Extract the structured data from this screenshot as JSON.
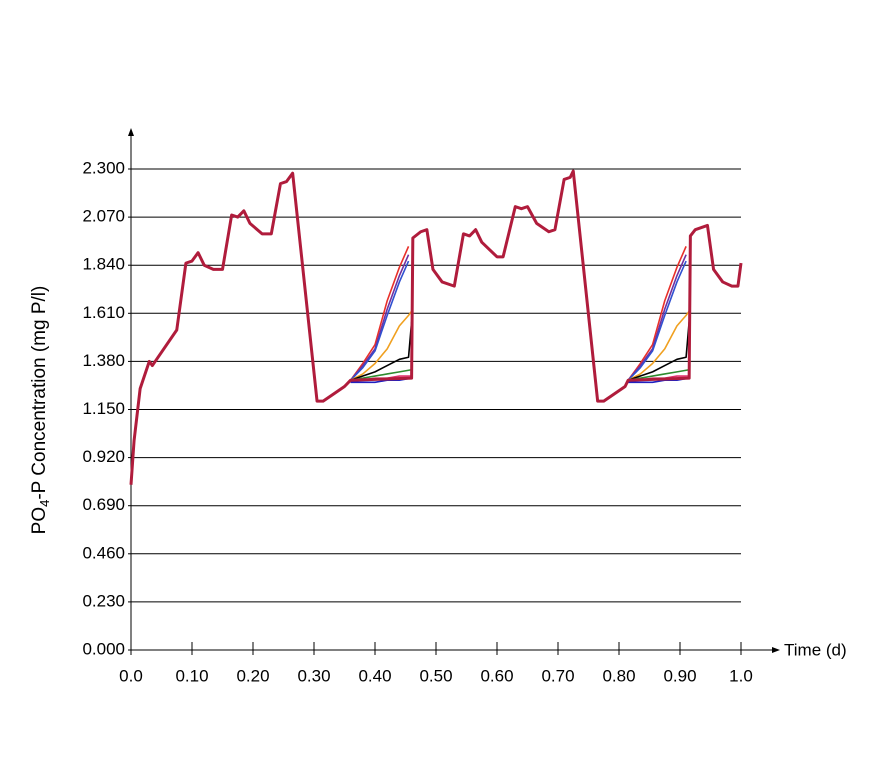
{
  "chart_data": {
    "type": "line",
    "x_label": "Time (d)",
    "y_label": [
      "PO",
      "4",
      "-P Concentration (mg P/l)"
    ],
    "xlim": [
      0,
      1
    ],
    "ylim": [
      0,
      2.3
    ],
    "xticks": [
      {
        "value": 0,
        "label": "0.0"
      },
      {
        "value": 0.1,
        "label": "0.10"
      },
      {
        "value": 0.2,
        "label": "0.20"
      },
      {
        "value": 0.3,
        "label": "0.30"
      },
      {
        "value": 0.4,
        "label": "0.40"
      },
      {
        "value": 0.5,
        "label": "0.50"
      },
      {
        "value": 0.6,
        "label": "0.60"
      },
      {
        "value": 0.7,
        "label": "0.70"
      },
      {
        "value": 0.8,
        "label": "0.80"
      },
      {
        "value": 0.9,
        "label": "0.90"
      },
      {
        "value": 1,
        "label": "1.0"
      }
    ],
    "yticks": [
      {
        "value": 0,
        "label": "0.000"
      },
      {
        "value": 0.23,
        "label": "0.230"
      },
      {
        "value": 0.46,
        "label": "0.460"
      },
      {
        "value": 0.69,
        "label": "0.690"
      },
      {
        "value": 0.92,
        "label": "0.920"
      },
      {
        "value": 1.15,
        "label": "1.150"
      },
      {
        "value": 1.38,
        "label": "1.380"
      },
      {
        "value": 1.61,
        "label": "1.610"
      },
      {
        "value": 1.84,
        "label": "1.840"
      },
      {
        "value": 2.07,
        "label": "2.070"
      },
      {
        "value": 2.3,
        "label": "2.300"
      }
    ],
    "grid": true,
    "series": [
      {
        "color": "#e8302a",
        "x": [
          0.36,
          0.38,
          0.4,
          0.42,
          0.44,
          0.455,
          0.6,
          0.815,
          0.835,
          0.855,
          0.875,
          0.895,
          0.91
        ],
        "values": [
          1.29,
          1.37,
          1.46,
          1.67,
          1.83,
          1.93,
          null,
          1.29,
          1.37,
          1.46,
          1.67,
          1.83,
          1.93
        ]
      },
      {
        "color": "#7030a0",
        "x": [
          0.36,
          0.38,
          0.4,
          0.42,
          0.44,
          0.455,
          0.6,
          0.815,
          0.835,
          0.855,
          0.875,
          0.895,
          0.91
        ],
        "values": [
          1.29,
          1.36,
          1.44,
          1.63,
          1.79,
          1.89,
          null,
          1.29,
          1.36,
          1.44,
          1.63,
          1.79,
          1.89
        ]
      },
      {
        "color": "#3050d0",
        "x": [
          0.36,
          0.38,
          0.4,
          0.42,
          0.44,
          0.455,
          0.6,
          0.815,
          0.835,
          0.855,
          0.875,
          0.895,
          0.91
        ],
        "values": [
          1.29,
          1.35,
          1.43,
          1.6,
          1.76,
          1.86,
          null,
          1.29,
          1.35,
          1.43,
          1.6,
          1.76,
          1.86
        ]
      },
      {
        "color": "#f0a020",
        "x": [
          0.36,
          0.38,
          0.4,
          0.42,
          0.44,
          0.455,
          0.46,
          0.6,
          0.815,
          0.835,
          0.855,
          0.875,
          0.895,
          0.91,
          0.915
        ],
        "values": [
          1.29,
          1.32,
          1.37,
          1.44,
          1.55,
          1.6,
          1.62,
          null,
          1.29,
          1.32,
          1.37,
          1.44,
          1.55,
          1.6,
          1.62
        ]
      },
      {
        "color": "#000000",
        "x": [
          0.36,
          0.38,
          0.4,
          0.42,
          0.44,
          0.455,
          0.46,
          0.6,
          0.815,
          0.835,
          0.855,
          0.875,
          0.895,
          0.91,
          0.915
        ],
        "values": [
          1.29,
          1.31,
          1.33,
          1.36,
          1.39,
          1.4,
          1.57,
          null,
          1.29,
          1.31,
          1.33,
          1.36,
          1.39,
          1.4,
          1.57
        ]
      },
      {
        "color": "#2e8b2e",
        "x": [
          0.36,
          0.38,
          0.4,
          0.42,
          0.44,
          0.46,
          0.6,
          0.815,
          0.835,
          0.855,
          0.875,
          0.895,
          0.915
        ],
        "values": [
          1.29,
          1.3,
          1.31,
          1.32,
          1.33,
          1.34,
          null,
          1.29,
          1.3,
          1.31,
          1.32,
          1.33,
          1.34
        ]
      },
      {
        "color": "#e0306a",
        "x": [
          0.36,
          0.38,
          0.4,
          0.42,
          0.44,
          0.46,
          0.6,
          0.815,
          0.835,
          0.855,
          0.875,
          0.895,
          0.915
        ],
        "values": [
          1.29,
          1.29,
          1.3,
          1.3,
          1.31,
          1.31,
          null,
          1.29,
          1.29,
          1.3,
          1.3,
          1.31,
          1.31
        ]
      },
      {
        "color": "#2020c0",
        "x": [
          0.36,
          0.38,
          0.4,
          0.42,
          0.44,
          0.46,
          0.6,
          0.815,
          0.835,
          0.855,
          0.875,
          0.895,
          0.915
        ],
        "values": [
          1.28,
          1.28,
          1.28,
          1.29,
          1.29,
          1.3,
          null,
          1.28,
          1.28,
          1.28,
          1.29,
          1.29,
          1.3
        ]
      },
      {
        "color": "#b01c3c",
        "x": [
          0,
          0.005,
          0.015,
          0.03,
          0.035,
          0.075,
          0.09,
          0.1,
          0.11,
          0.12,
          0.135,
          0.15,
          0.165,
          0.175,
          0.185,
          0.195,
          0.215,
          0.23,
          0.245,
          0.255,
          0.265,
          0.305,
          0.315,
          0.33,
          0.35,
          0.36,
          0.46,
          0.462,
          0.475,
          0.485,
          0.495,
          0.51,
          0.53,
          0.545,
          0.555,
          0.565,
          0.575,
          0.6,
          0.61,
          0.63,
          0.64,
          0.65,
          0.665,
          0.685,
          0.695,
          0.71,
          0.72,
          0.725,
          0.765,
          0.775,
          0.79,
          0.81,
          0.815,
          0.915,
          0.917,
          0.925,
          0.935,
          0.945,
          0.955,
          0.97,
          0.985,
          0.995,
          1.0
        ],
        "values": [
          0.79,
          1.0,
          1.25,
          1.38,
          1.36,
          1.53,
          1.85,
          1.86,
          1.9,
          1.84,
          1.82,
          1.82,
          2.08,
          2.07,
          2.1,
          2.04,
          1.99,
          1.99,
          2.23,
          2.24,
          2.28,
          1.19,
          1.19,
          1.22,
          1.26,
          1.29,
          1.3,
          1.97,
          2.0,
          2.01,
          1.82,
          1.76,
          1.74,
          1.99,
          1.98,
          2.01,
          1.95,
          1.88,
          1.88,
          2.12,
          2.11,
          2.12,
          2.04,
          2.0,
          2.01,
          2.25,
          2.26,
          2.29,
          1.19,
          1.19,
          1.22,
          1.26,
          1.29,
          1.3,
          1.98,
          2.01,
          2.02,
          2.03,
          1.82,
          1.76,
          1.74,
          1.74,
          1.85
        ]
      }
    ]
  }
}
